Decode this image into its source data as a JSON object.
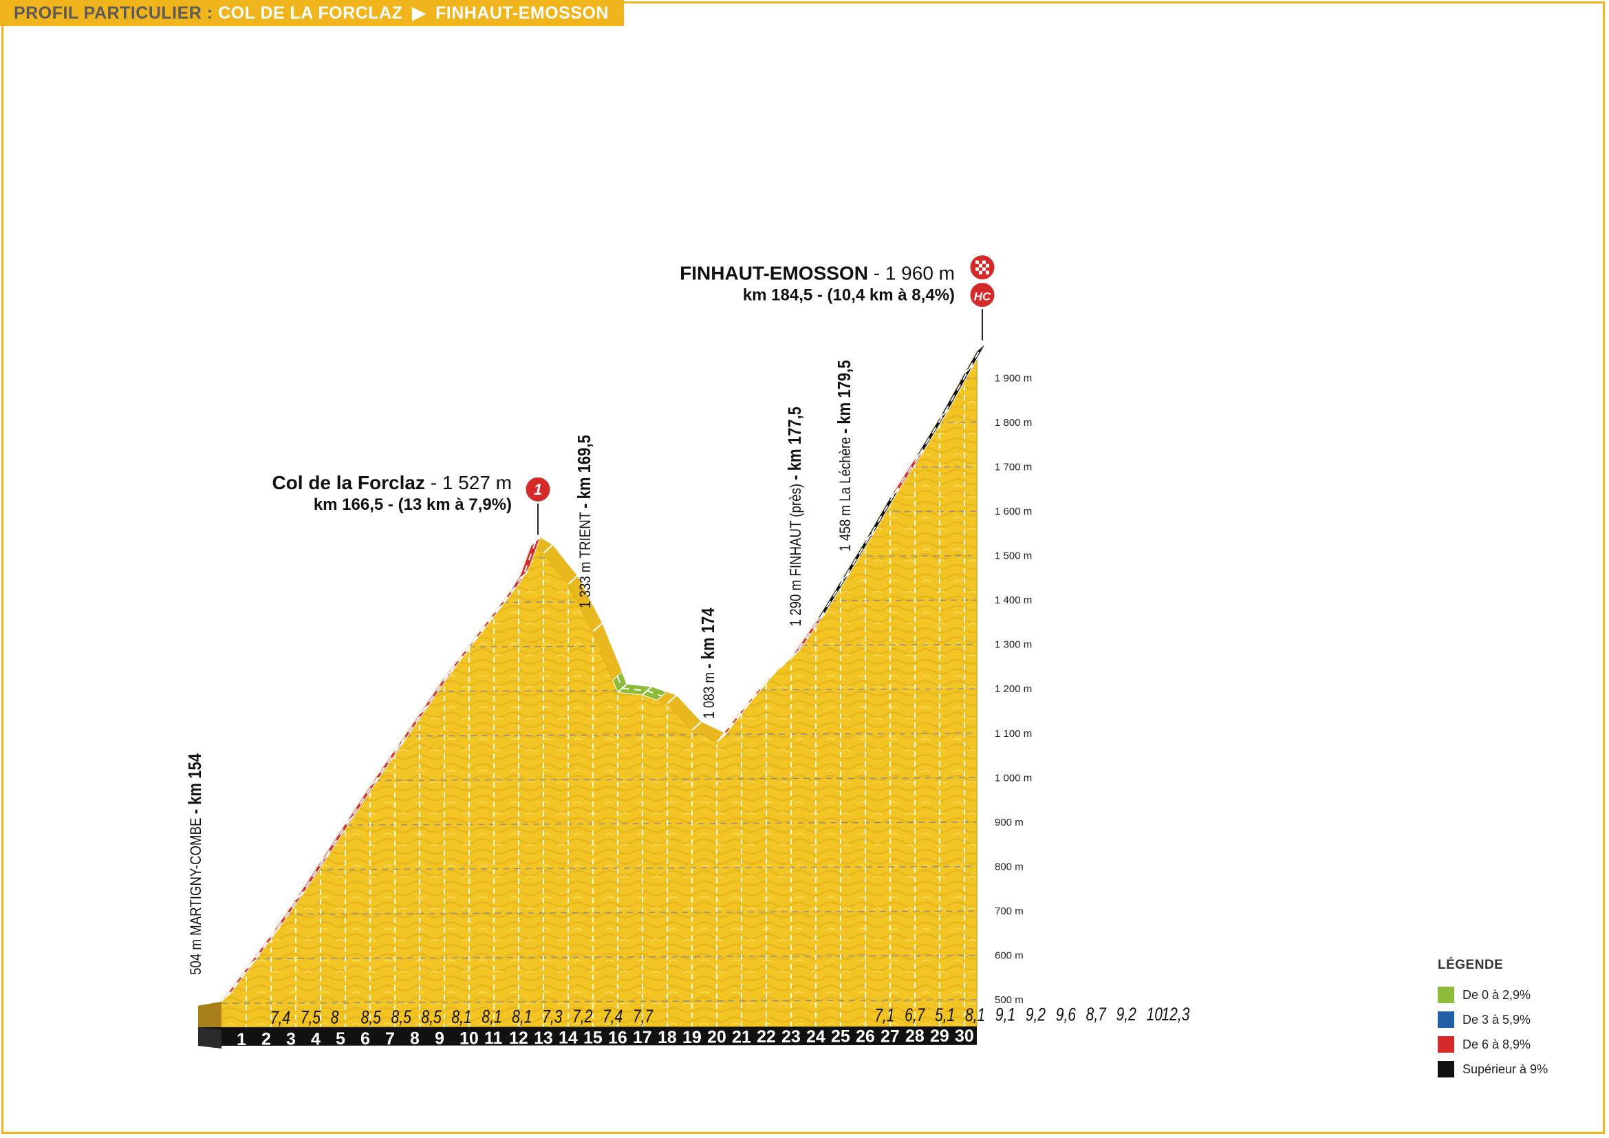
{
  "header": {
    "prefix": "PROFIL PARTICULIER : ",
    "start": "COL DE LA FORCLAZ",
    "arrow": "▶",
    "finish": "FINHAUT-EMOSSON"
  },
  "chart_data": {
    "type": "area",
    "title": "PROFIL PARTICULIER : COL DE LA FORCLAZ ▶ FINHAUT-EMOSSON",
    "xlabel": "",
    "ylabel": "",
    "x_range": [
      0,
      30.5
    ],
    "ylim": [
      500,
      1960
    ],
    "y_ticks": [
      500,
      600,
      700,
      800,
      900,
      1000,
      1100,
      1200,
      1300,
      1400,
      1500,
      1600,
      1700,
      1800,
      1900
    ],
    "y_tick_labels": [
      "500 m",
      "600 m",
      "700 m",
      "800 m",
      "900 m",
      "1 000 m",
      "1 100 m",
      "1 200 m",
      "1 300 m",
      "1 400 m",
      "1 500 m",
      "1 600 m",
      "1 700 m",
      "1 800 m",
      "1 900 m"
    ],
    "km_labels": [
      "1",
      "2",
      "3",
      "4",
      "5",
      "6",
      "7",
      "8",
      "9",
      "10",
      "11",
      "12",
      "13",
      "14",
      "15",
      "16",
      "17",
      "18",
      "19",
      "20",
      "21",
      "22",
      "23",
      "24",
      "25",
      "26",
      "27",
      "28",
      "29",
      "30"
    ],
    "profile": [
      {
        "km": 0,
        "alt": 504
      },
      {
        "km": 1,
        "alt": 578
      },
      {
        "km": 2,
        "alt": 653
      },
      {
        "km": 3,
        "alt": 733
      },
      {
        "km": 4,
        "alt": 818
      },
      {
        "km": 5,
        "alt": 903
      },
      {
        "km": 6,
        "alt": 988
      },
      {
        "km": 7,
        "alt": 1069
      },
      {
        "km": 8,
        "alt": 1150
      },
      {
        "km": 9,
        "alt": 1231
      },
      {
        "km": 10,
        "alt": 1304
      },
      {
        "km": 11,
        "alt": 1376
      },
      {
        "km": 12,
        "alt": 1450
      },
      {
        "km": 12.5,
        "alt": 1527
      },
      {
        "km": 13,
        "alt": 1510
      },
      {
        "km": 14,
        "alt": 1440
      },
      {
        "km": 15,
        "alt": 1333
      },
      {
        "km": 16,
        "alt": 1196
      },
      {
        "km": 17,
        "alt": 1190
      },
      {
        "km": 18,
        "alt": 1170
      },
      {
        "km": 19,
        "alt": 1110
      },
      {
        "km": 20,
        "alt": 1083
      },
      {
        "km": 21,
        "alt": 1154
      },
      {
        "km": 22,
        "alt": 1221
      },
      {
        "km": 23,
        "alt": 1272
      },
      {
        "km": 24,
        "alt": 1353
      },
      {
        "km": 25,
        "alt": 1444
      },
      {
        "km": 26,
        "alt": 1536
      },
      {
        "km": 27,
        "alt": 1632
      },
      {
        "km": 28,
        "alt": 1719
      },
      {
        "km": 29,
        "alt": 1811
      },
      {
        "km": 30,
        "alt": 1911
      },
      {
        "km": 30.5,
        "alt": 1960
      }
    ],
    "segments": [
      {
        "from": 0,
        "to": 12.5,
        "category": "red"
      },
      {
        "from": 15.8,
        "to": 17.6,
        "category": "green"
      },
      {
        "from": 20,
        "to": 21.7,
        "category": "red"
      },
      {
        "from": 21.7,
        "to": 22.8,
        "category": "blue"
      },
      {
        "from": 22.8,
        "to": 24,
        "category": "red"
      },
      {
        "from": 24,
        "to": 27,
        "category": "black"
      },
      {
        "from": 27,
        "to": 28,
        "category": "red"
      },
      {
        "from": 28,
        "to": 30.5,
        "category": "black"
      }
    ],
    "gradient_labels": [
      {
        "km": 1,
        "value": "7,4"
      },
      {
        "km": 2,
        "value": "7,5"
      },
      {
        "km": 3,
        "value": "8"
      },
      {
        "km": 4,
        "value": "8,5"
      },
      {
        "km": 5,
        "value": "8,5"
      },
      {
        "km": 6,
        "value": "8,5"
      },
      {
        "km": 7,
        "value": "8,1"
      },
      {
        "km": 8,
        "value": "8,1"
      },
      {
        "km": 9,
        "value": "8,1"
      },
      {
        "km": 10,
        "value": "7,3"
      },
      {
        "km": 11,
        "value": "7,2"
      },
      {
        "km": 12,
        "value": "7,4"
      },
      {
        "km": 13,
        "value": "7,7"
      },
      {
        "km": 21,
        "value": "7,1"
      },
      {
        "km": 22,
        "value": "6,7"
      },
      {
        "km": 23,
        "value": "5,1"
      },
      {
        "km": 24,
        "value": "8,1"
      },
      {
        "km": 25,
        "value": "9,1"
      },
      {
        "km": 26,
        "value": "9,2"
      },
      {
        "km": 27,
        "value": "9,6"
      },
      {
        "km": 28,
        "value": "8,7"
      },
      {
        "km": 29,
        "value": "9,2"
      },
      {
        "km": 30,
        "value": "10"
      },
      {
        "km": 30.5,
        "value": "12,3"
      }
    ],
    "annotations": [
      {
        "km": 0,
        "alt": 504,
        "alt_text": "504 m",
        "name": "MARTIGNY-COMBE",
        "km_text": "km 154"
      },
      {
        "km": 15,
        "alt": 1333,
        "alt_text": "1 333 m",
        "name": "TRIENT",
        "km_text": "km 169,5"
      },
      {
        "km": 20,
        "alt": 1083,
        "alt_text": "1 083 m",
        "name": "",
        "km_text": "km 174"
      },
      {
        "km": 23.5,
        "alt": 1290,
        "alt_text": "1 290 m",
        "name": "FINHAUT (près)",
        "km_text": "km 177,5"
      },
      {
        "km": 25.5,
        "alt": 1458,
        "alt_text": "1 458 m",
        "name": "La Léchère",
        "km_text": "km 179,5"
      }
    ],
    "summits": [
      {
        "km": 12.5,
        "alt": 1527,
        "name": "Col de la Forclaz",
        "alt_text": " - 1 527 m",
        "info": "km 166,5 - (13 km à 7,9%)",
        "badge": "1",
        "badge_color": "#d42a2a"
      },
      {
        "km": 30.5,
        "alt": 1960,
        "name": "FINHAUT-EMOSSON",
        "alt_text": " - 1 960 m",
        "info": "km 184,5 - (10,4 km à 8,4%)",
        "badge": "HC",
        "badge_color": "#d42a2a",
        "finish_flag": true
      }
    ],
    "legend": {
      "title": "LÉGENDE",
      "placement": "bottom-right",
      "items": [
        {
          "label": "De 0 à 2,9%",
          "color": "#8dbb3a"
        },
        {
          "label": "De 3 à 5,9%",
          "color": "#235fa4"
        },
        {
          "label": "De 6 à 8,9%",
          "color": "#d42a2a"
        },
        {
          "label": "Supérieur à 9%",
          "color": "#111111"
        }
      ]
    },
    "colors": {
      "fill": "#f3c524",
      "fill_dark": "#d9a916",
      "side": "#a8801a",
      "base": "#111111",
      "grid": "#8a8a8a",
      "accent": "#f0b41c"
    }
  }
}
